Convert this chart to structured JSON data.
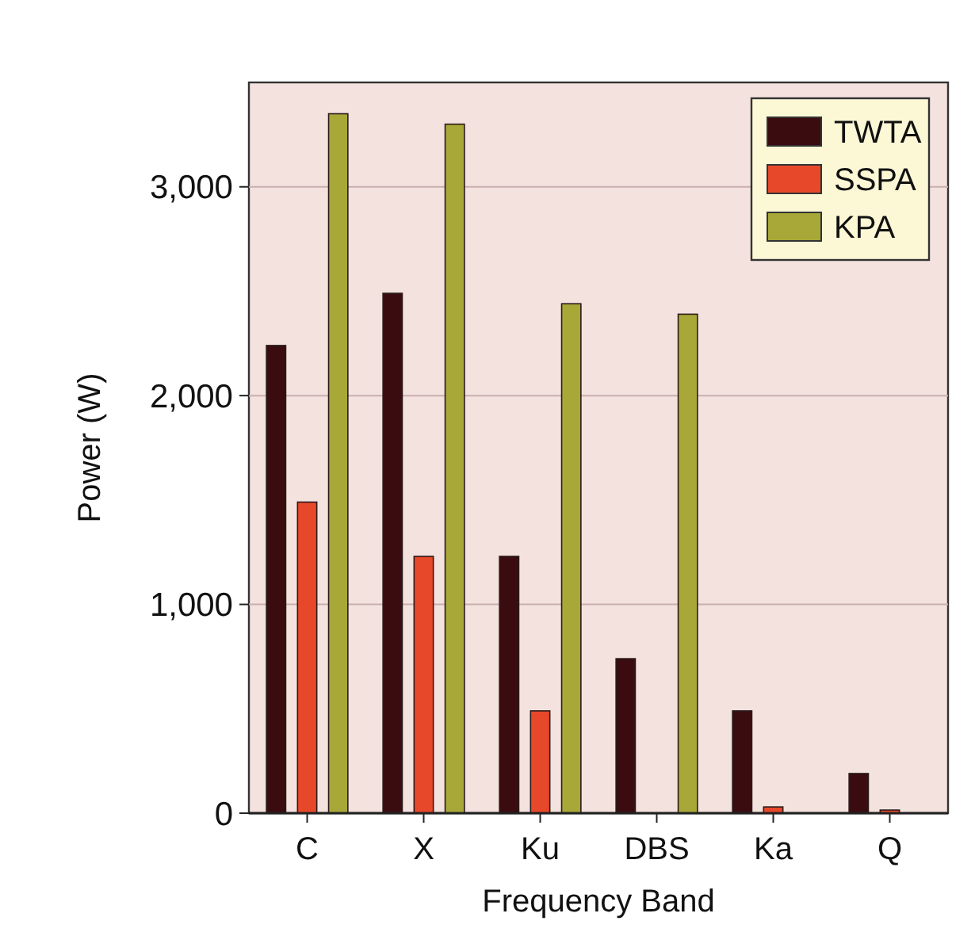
{
  "chart_data": {
    "type": "bar",
    "xlabel": "Frequency Band",
    "ylabel": "Power (W)",
    "categories": [
      "C",
      "X",
      "Ku",
      "DBS",
      "Ka",
      "Q"
    ],
    "series": [
      {
        "name": "TWTA",
        "color": "#3a0c10",
        "values": [
          2240,
          2490,
          1230,
          740,
          490,
          190
        ]
      },
      {
        "name": "SSPA",
        "color": "#e8482a",
        "values": [
          1490,
          1230,
          490,
          null,
          30,
          15
        ]
      },
      {
        "name": "KPA",
        "color": "#a8a838",
        "values": [
          3350,
          3300,
          2440,
          2390,
          null,
          null
        ]
      }
    ],
    "ylim": [
      0,
      3500
    ],
    "yticks": [
      0,
      {
        "value": 1000,
        "label": "1,000"
      },
      {
        "value": 2000,
        "label": "2,000"
      },
      {
        "value": 3000,
        "label": "3,000"
      }
    ],
    "grid": "y",
    "legend": "top right"
  }
}
